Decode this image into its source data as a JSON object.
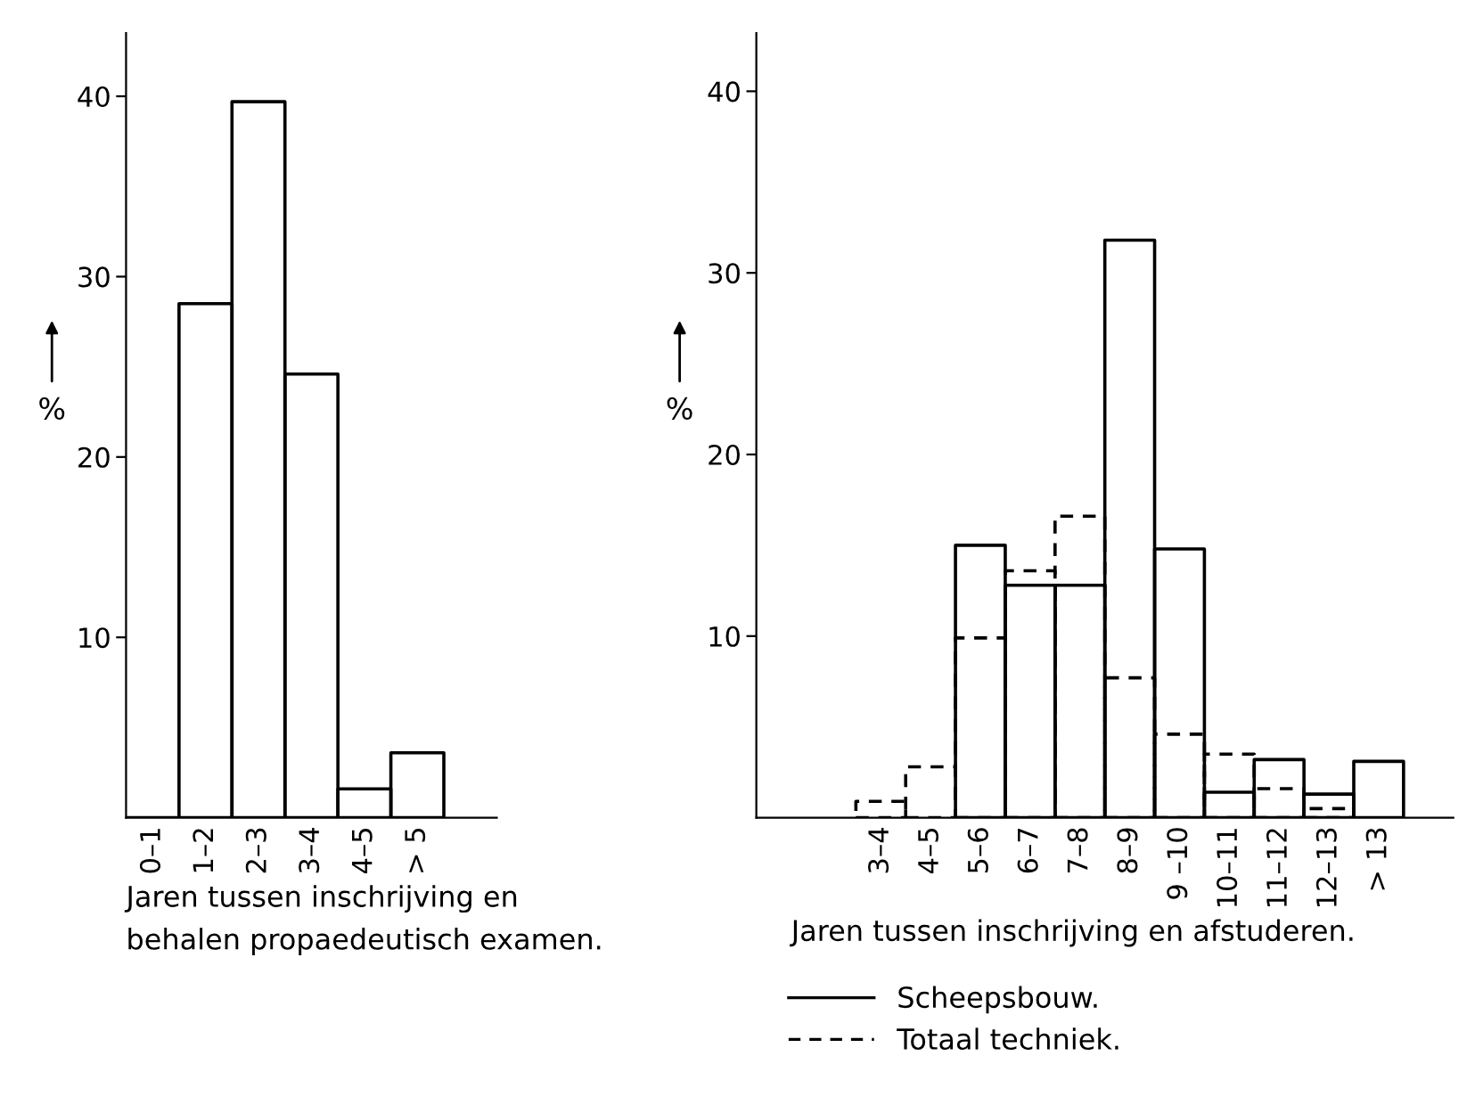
{
  "chart_data": [
    {
      "type": "bar",
      "categories": [
        "0–1",
        "1–2",
        "2–3",
        "3–4",
        "4–5",
        "> 5"
      ],
      "values": [
        0,
        28.5,
        39.7,
        24.6,
        1.6,
        3.6
      ],
      "color": "#000000",
      "ylabel": "%",
      "xlabel": "Jaren tussen inschrijving en\nbehalen propaedeutisch examen.",
      "ylim": [
        0,
        43.5
      ],
      "yticks": [
        10,
        20,
        30,
        40
      ],
      "grid": false,
      "legend": false
    },
    {
      "type": "bar",
      "categories": [
        null,
        null,
        "3–4",
        "4–5",
        "5–6",
        "6–7",
        "7–8",
        "8–9",
        "9 –10",
        "10–11",
        "11–12",
        "12–13",
        "> 13"
      ],
      "series": [
        {
          "name": "Scheepsbouw.",
          "color": "#000000",
          "line_style": "solid",
          "values": [
            null,
            null,
            null,
            null,
            15,
            12.8,
            12.8,
            31.8,
            14.8,
            1.4,
            3.2,
            1.3,
            3.1
          ]
        },
        {
          "name": "Totaal techniek.",
          "color": "#000000",
          "line_style": "dashed",
          "values": [
            null,
            null,
            0.9,
            2.8,
            9.9,
            13.6,
            16.6,
            7.7,
            4.6,
            3.5,
            1.6,
            0.5,
            null
          ]
        }
      ],
      "ylabel": "%",
      "xlabel": "Jaren tussen inschrijving en afstuderen.",
      "ylim": [
        0,
        43.2
      ],
      "yticks": [
        10,
        20,
        30,
        40
      ],
      "grid": false,
      "legend": "bottom"
    }
  ]
}
